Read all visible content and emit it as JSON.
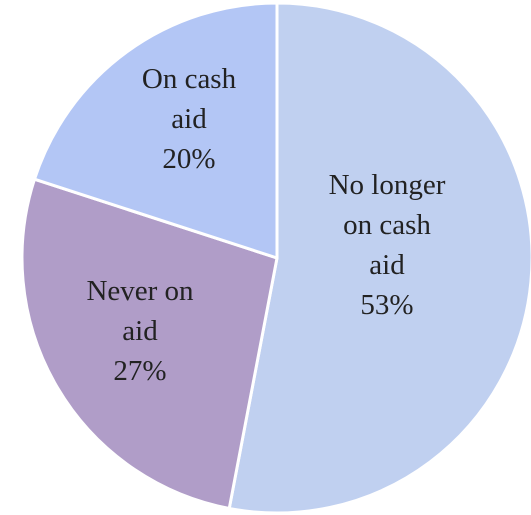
{
  "chart_data": {
    "type": "pie",
    "title": "",
    "slices": [
      {
        "key": "no-longer-on-cash-aid",
        "label": "No longer on cash aid",
        "value": 53,
        "display_lines": [
          "No longer",
          "on cash",
          "aid",
          "53%"
        ],
        "color": "#c0d0f0"
      },
      {
        "key": "never-on-aid",
        "label": "Never on aid",
        "value": 27,
        "display_lines": [
          "Never on",
          "aid",
          "27%"
        ],
        "color": "#b09dc8"
      },
      {
        "key": "on-cash-aid",
        "label": "On cash aid",
        "value": 20,
        "display_lines": [
          "On cash",
          "aid",
          "20%"
        ],
        "color": "#b3c6f5"
      }
    ],
    "start_angle_deg": 0,
    "direction": "clockwise",
    "legend": "none"
  }
}
